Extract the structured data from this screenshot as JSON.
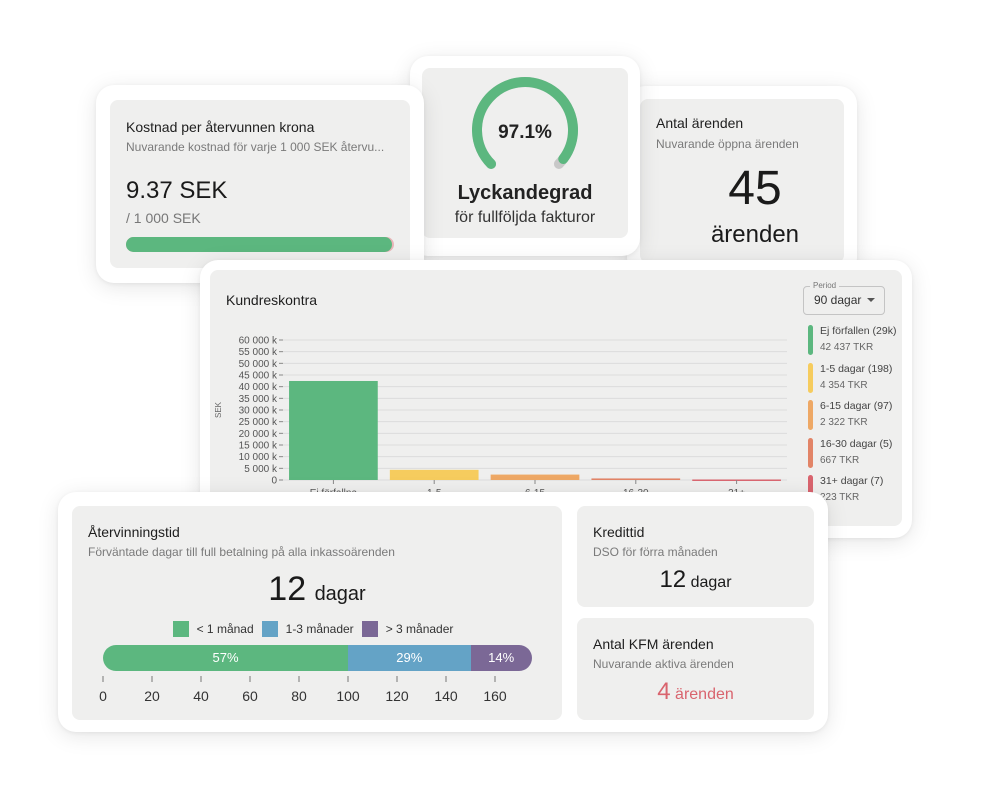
{
  "cost_card": {
    "title": "Kostnad per återvunnen krona",
    "subtitle": "Nuvarande kostnad för varje 1 000 SEK återvu...",
    "value": "9.37 SEK",
    "unit": "/ 1 000 SEK",
    "progress_fraction": 0.9937,
    "bar_color": "#5cb77f",
    "remainder_color": "#e9b4b8"
  },
  "success_card": {
    "percent_label": "97.1%",
    "percent_value": 97.1,
    "title": "Lyckandegrad",
    "subtitle": "för fullföljda fakturor",
    "gauge_color": "#5cb77f",
    "gauge_rest_color": "#c8c8c8"
  },
  "cases_card": {
    "title": "Antal ärenden",
    "subtitle": "Nuvarande öppna ärenden",
    "value": "45",
    "unit": "ärenden"
  },
  "receivables": {
    "title": "Kundreskontra",
    "period_label": "Period",
    "period_value": "90 dagar",
    "dropdown_icon": "caret-down-icon",
    "legend": [
      {
        "name": "Ej förfallen (29k)",
        "value": "42 437 TKR",
        "color": "#5cb77f"
      },
      {
        "name": "1-5 dagar (198)",
        "value": "4 354 TKR",
        "color": "#f6cc5e"
      },
      {
        "name": "6-15 dagar (97)",
        "value": "2 322 TKR",
        "color": "#eea865"
      },
      {
        "name": "16-30 dagar (5)",
        "value": "667 TKR",
        "color": "#e28467"
      },
      {
        "name": "31+ dagar (7)",
        "value": "223 TKR",
        "color": "#d9646e"
      }
    ]
  },
  "chart_data": {
    "type": "bar",
    "categories": [
      "Ej förfallna",
      "1-5",
      "6-15",
      "16-30",
      "31+"
    ],
    "values": [
      42437,
      4354,
      2322,
      667,
      223
    ],
    "colors": [
      "#5cb77f",
      "#f6cc5e",
      "#eea865",
      "#e28467",
      "#d9646e"
    ],
    "ylabel": "SEK",
    "ylim": [
      0,
      60000
    ],
    "yticks": [
      "0",
      "5 000 k",
      "10 000 k",
      "15 000 k",
      "20 000 k",
      "25 000 k",
      "30 000 k",
      "35 000 k",
      "40 000 k",
      "45 000 k",
      "50 000 k",
      "55 000 k",
      "60 000 k"
    ],
    "ytick_values": [
      0,
      5000,
      10000,
      15000,
      20000,
      25000,
      30000,
      35000,
      40000,
      45000,
      50000,
      55000,
      60000
    ],
    "grid": true
  },
  "recovery": {
    "title": "Återvinningstid",
    "subtitle": "Förväntade dagar till full betalning på alla inkassoärenden",
    "value": "12",
    "unit": "dagar",
    "legend": [
      {
        "label": "< 1 månad",
        "color": "#5cb77f"
      },
      {
        "label": "1-3 månader",
        "color": "#64a3c6"
      },
      {
        "label": "> 3 månader",
        "color": "#7b6896"
      }
    ],
    "segments": [
      {
        "label": "57%",
        "start": 0,
        "end": 100,
        "color": "#5cb77f"
      },
      {
        "label": "29%",
        "start": 100,
        "end": 150,
        "color": "#64a3c6"
      },
      {
        "label": "14%",
        "start": 150,
        "end": 175,
        "color": "#7b6896"
      }
    ],
    "axis_ticks": [
      "0",
      "20",
      "40",
      "60",
      "80",
      "100",
      "120",
      "140",
      "160"
    ],
    "axis_values": [
      0,
      20,
      40,
      60,
      80,
      100,
      120,
      140,
      160
    ]
  },
  "credit": {
    "title": "Kredittid",
    "subtitle": "DSO för förra månaden",
    "value": "12",
    "unit": "dagar"
  },
  "kfm": {
    "title": "Antal KFM ärenden",
    "subtitle": "Nuvarande aktiva ärenden",
    "value": "4",
    "unit": "ärenden",
    "color": "#d9646e"
  }
}
